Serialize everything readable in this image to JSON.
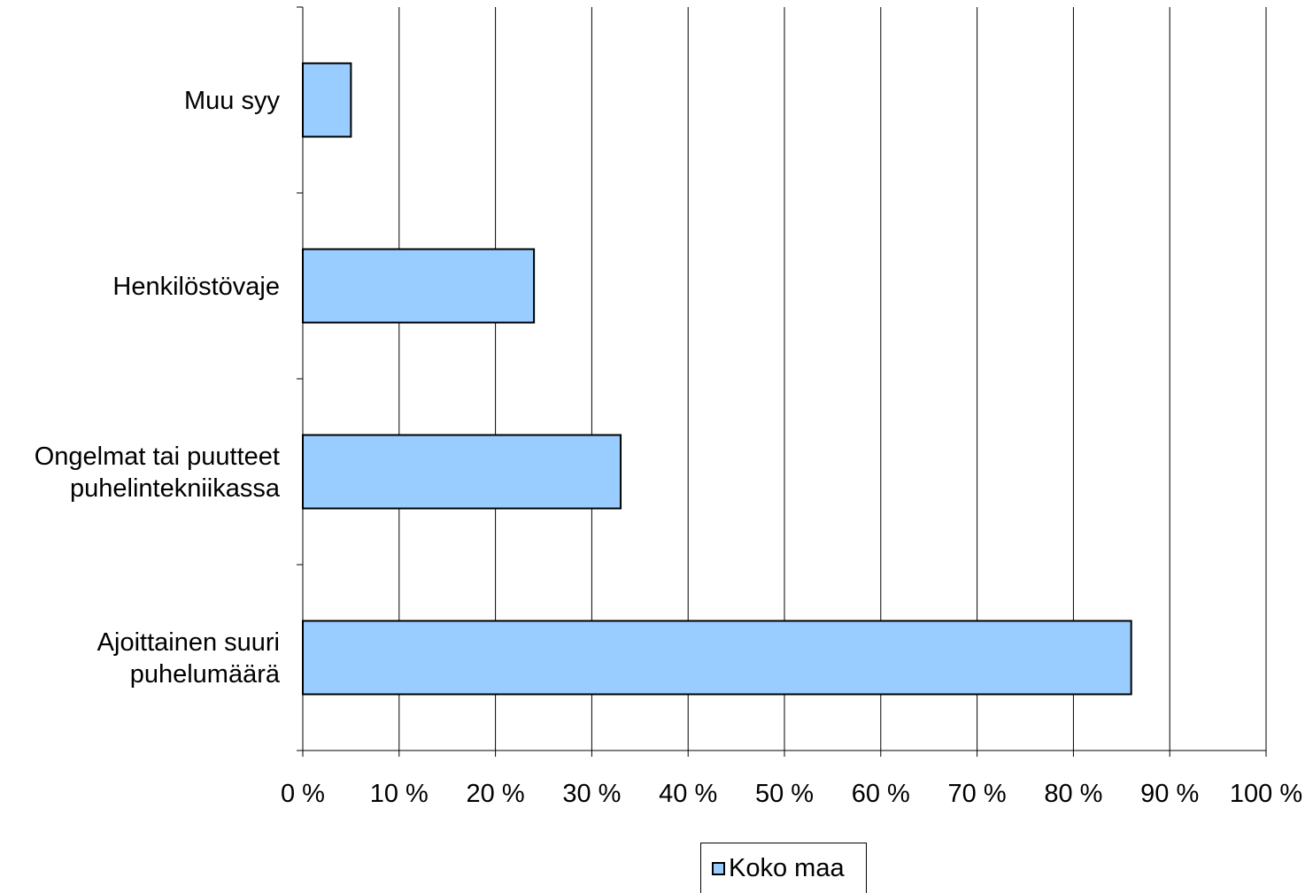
{
  "chart_data": {
    "type": "bar",
    "orientation": "horizontal",
    "categories": [
      [
        "Muu syy"
      ],
      [
        "Henkilöstövaje"
      ],
      [
        "Ongelmat tai puutteet",
        "puhelintekniikassa"
      ],
      [
        "Ajoittainen suuri",
        "puhelumäärä"
      ]
    ],
    "series": [
      {
        "name": "Koko maa",
        "values": [
          5,
          24,
          33,
          86
        ],
        "color": "#99ccff"
      }
    ],
    "xlim": [
      0,
      100
    ],
    "xticks": [
      "0 %",
      "10 %",
      "20 %",
      "30 %",
      "40 %",
      "50 %",
      "60 %",
      "70 %",
      "80 %",
      "90 %",
      "100 %"
    ],
    "grid": "vertical",
    "legend": "bottom"
  }
}
